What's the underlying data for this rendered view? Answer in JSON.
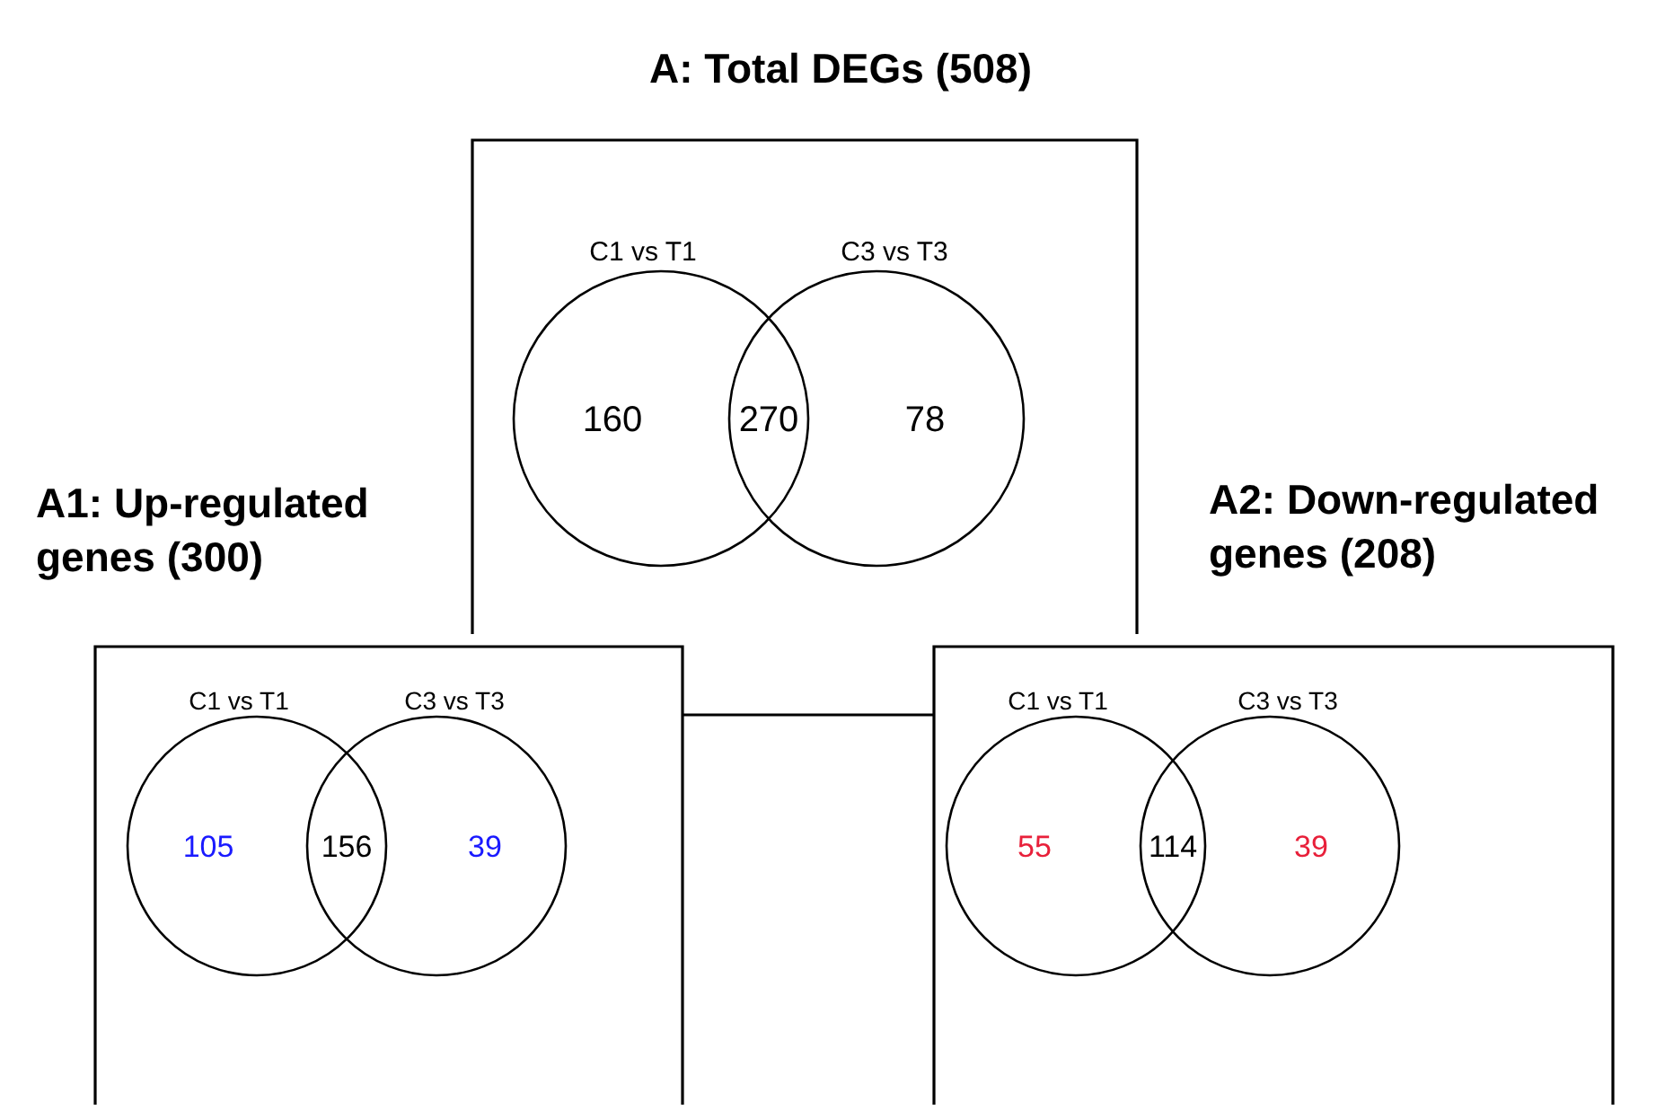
{
  "chart_data": [
    {
      "type": "other",
      "title": "A: Total DEGs (508)",
      "annotations": [
        "C1 vs T1",
        "C3 vs T3"
      ],
      "categories": [
        null,
        null,
        null
      ],
      "values": [
        160,
        270,
        78
      ],
      "colors": [
        "#000000",
        "#000000",
        "#000000"
      ],
      "data_labels": true
    },
    {
      "type": "other",
      "title": "A1: Up-regulated genes (300)",
      "annotations": [
        "C1 vs T1",
        "C3 vs T3"
      ],
      "categories": [
        null,
        null,
        null
      ],
      "values": [
        105,
        156,
        39
      ],
      "colors": [
        "#1a1aff",
        "#000000",
        "#1a1aff"
      ],
      "data_labels": true
    },
    {
      "type": "other",
      "title": "A2: Down-regulated genes (208)",
      "annotations": [
        "C1 vs T1",
        "C3 vs T3"
      ],
      "categories": [
        null,
        null,
        null
      ],
      "values": [
        55,
        114,
        39
      ],
      "colors": [
        "#e8203a",
        "#000000",
        "#e8203a"
      ],
      "data_labels": true
    }
  ]
}
